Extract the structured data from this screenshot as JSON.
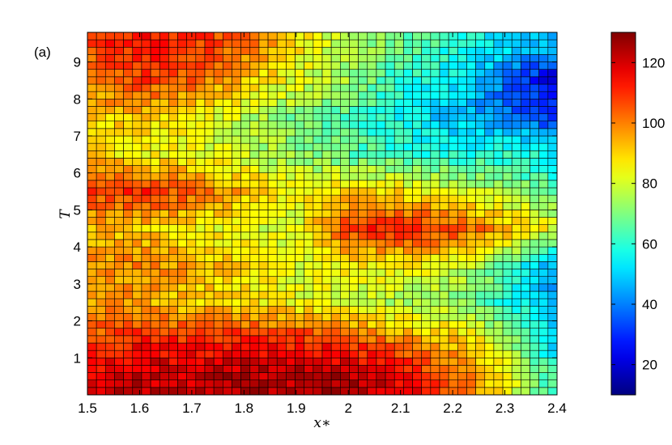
{
  "chart_data": {
    "type": "heatmap",
    "panel_label": "(a)",
    "xlabel": "x∗",
    "ylabel": "T",
    "xlim": [
      1.5,
      2.4
    ],
    "ylim": [
      0.0,
      9.8
    ],
    "x_ticks": [
      1.5,
      1.6,
      1.7,
      1.8,
      1.9,
      2.0,
      2.1,
      2.2,
      2.3,
      2.4
    ],
    "x_tick_labels": [
      "1.5",
      "1.6",
      "1.7",
      "1.8",
      "1.9",
      "2",
      "2.1",
      "2.2",
      "2.3",
      "2.4"
    ],
    "y_ticks": [
      1,
      2,
      3,
      4,
      5,
      6,
      7,
      8,
      9
    ],
    "y_tick_labels": [
      "1",
      "2",
      "3",
      "4",
      "5",
      "6",
      "7",
      "8",
      "9"
    ],
    "colorbar": {
      "colormap": "jet",
      "range": [
        10,
        130
      ],
      "ticks": [
        20,
        40,
        60,
        80,
        100,
        120
      ],
      "tick_labels": [
        "20",
        "40",
        "60",
        "80",
        "100",
        "120"
      ]
    },
    "grid_columns": 52,
    "grid_rows": 49,
    "description_of_values": "Heat value over (x*, T); approximate field reconstructed from the colour map",
    "anchor_field": {
      "x": [
        1.5,
        1.6,
        1.7,
        1.8,
        1.9,
        2.0,
        2.1,
        2.2,
        2.3,
        2.4
      ],
      "T": [
        0.5,
        1.5,
        2.5,
        3.5,
        4.5,
        5.5,
        6.5,
        7.5,
        8.5,
        9.5
      ],
      "values": [
        [
          118,
          122,
          122,
          124,
          124,
          124,
          118,
          104,
          85,
          60
        ],
        [
          106,
          112,
          110,
          112,
          110,
          108,
          98,
          92,
          78,
          48
        ],
        [
          96,
          96,
          90,
          88,
          84,
          80,
          75,
          72,
          60,
          46
        ],
        [
          98,
          100,
          96,
          88,
          82,
          86,
          86,
          82,
          66,
          42
        ],
        [
          92,
          92,
          86,
          82,
          80,
          110,
          112,
          108,
          96,
          82
        ],
        [
          108,
          110,
          104,
          94,
          86,
          90,
          88,
          82,
          74,
          64
        ],
        [
          90,
          86,
          84,
          78,
          72,
          66,
          62,
          58,
          60,
          56
        ],
        [
          90,
          92,
          86,
          78,
          70,
          64,
          56,
          48,
          40,
          30
        ],
        [
          100,
          108,
          104,
          92,
          82,
          74,
          60,
          54,
          38,
          18
        ],
        [
          108,
          112,
          110,
          102,
          88,
          76,
          68,
          60,
          52,
          48
        ]
      ]
    }
  }
}
